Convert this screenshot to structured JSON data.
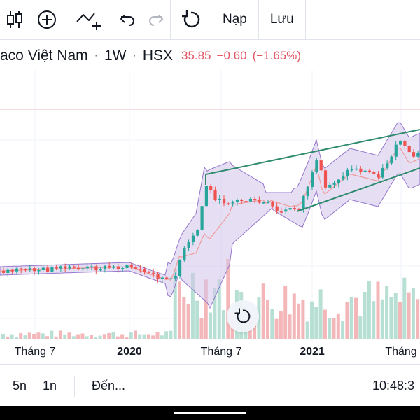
{
  "toolbar": {
    "icons": [
      "candlestick-icon",
      "plus-circle-icon",
      "indicators-icon",
      "undo-icon",
      "redo-icon",
      "refresh-icon"
    ],
    "load_label": "Nạp",
    "save_label": "Lưu"
  },
  "symbol": {
    "name": "aco Việt Nam",
    "separator": "·",
    "interval": "1W",
    "exchange": "HSX",
    "price": "35.85",
    "change": "−0.60",
    "change_percent": "(−1.65%)"
  },
  "time_axis": {
    "labels": [
      "Tháng 7",
      "2020",
      "Tháng 7",
      "2021",
      "Tháng"
    ]
  },
  "bottom_bar": {
    "range_5d": "5n",
    "range_1d": "1n",
    "goto": "Đến...",
    "clock": "10:48:3"
  },
  "colors": {
    "up": "#26a69a",
    "down": "#ef5350",
    "band_fill": "#d1c4e9",
    "band_line": "#9575cd",
    "ma_line": "#ef9a9a",
    "trendline": "#2e8b6e",
    "price_line": "#f2b8bd",
    "negative_quote": "#e05561"
  }
}
